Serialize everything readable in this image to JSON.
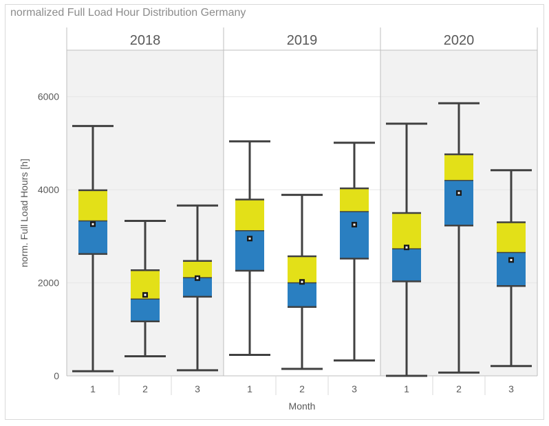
{
  "chart_title": "normalized Full Load Hour Distribution Germany",
  "colors": {
    "panel_background": "#f2f2f2",
    "alt_panel_background": "#ffffff",
    "upper_box": "#e3e018",
    "lower_box": "#2a7fc1",
    "whisker": "#404040",
    "mean_marker": "#1a1a1a",
    "grid": "#e6e6e6",
    "panel_divider": "#bfbfbf"
  },
  "chart_data": {
    "type": "box",
    "title": "normalized Full Load Hour Distribution Germany",
    "xlabel": "Month",
    "ylabel": "norm. Full Load Hours [h]",
    "ylim": [
      0,
      7000
    ],
    "yticks": [
      0,
      2000,
      4000,
      6000
    ],
    "grid": true,
    "panels": [
      {
        "label": "2018",
        "boxes": [
          {
            "month": "1",
            "min": 100,
            "q1": 2620,
            "median": 3330,
            "q3": 3990,
            "max": 5370,
            "mean": 3260
          },
          {
            "month": "2",
            "min": 420,
            "q1": 1170,
            "median": 1650,
            "q3": 2270,
            "max": 3330,
            "mean": 1740
          },
          {
            "month": "3",
            "min": 120,
            "q1": 1700,
            "median": 2110,
            "q3": 2470,
            "max": 3660,
            "mean": 2100
          }
        ]
      },
      {
        "label": "2019",
        "boxes": [
          {
            "month": "1",
            "min": 450,
            "q1": 2260,
            "median": 3120,
            "q3": 3790,
            "max": 5040,
            "mean": 2950
          },
          {
            "month": "2",
            "min": 150,
            "q1": 1480,
            "median": 2000,
            "q3": 2570,
            "max": 3890,
            "mean": 2020
          },
          {
            "month": "3",
            "min": 330,
            "q1": 2520,
            "median": 3530,
            "q3": 4030,
            "max": 5010,
            "mean": 3250
          }
        ]
      },
      {
        "label": "2020",
        "boxes": [
          {
            "month": "1",
            "min": 0,
            "q1": 2030,
            "median": 2730,
            "q3": 3500,
            "max": 5420,
            "mean": 2760
          },
          {
            "month": "2",
            "min": 70,
            "q1": 3230,
            "median": 4200,
            "q3": 4760,
            "max": 5860,
            "mean": 3930
          },
          {
            "month": "3",
            "min": 210,
            "q1": 1930,
            "median": 2650,
            "q3": 3300,
            "max": 4420,
            "mean": 2490
          }
        ]
      }
    ]
  }
}
